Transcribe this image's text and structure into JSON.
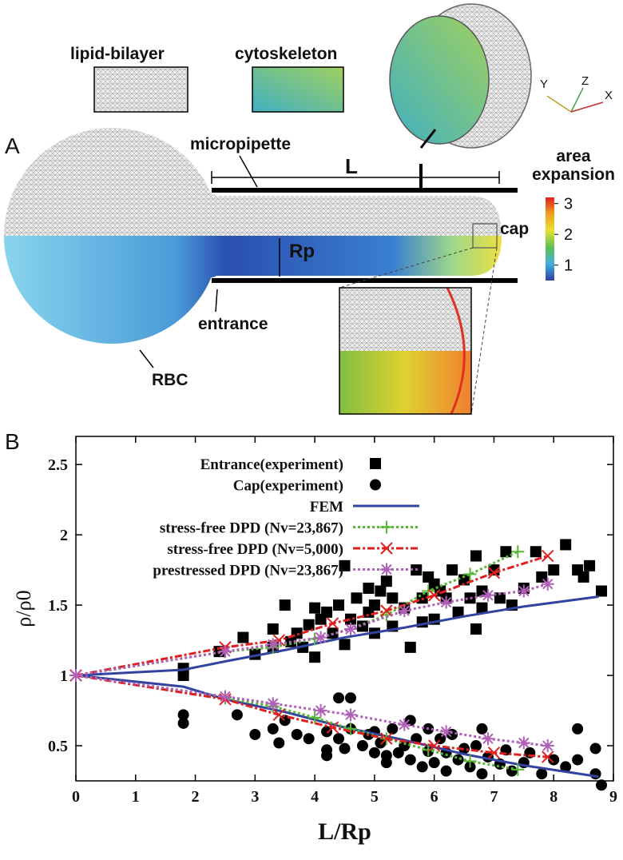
{
  "panel_a": {
    "label": "A",
    "lipid_bilayer": "lipid-bilayer",
    "cytoskeleton": "cytoskeleton",
    "micropipette": "micropipette",
    "length": "L",
    "radius": "Rp",
    "cap": "cap",
    "entrance": "entrance",
    "rbc": "RBC",
    "colorbar": {
      "title": [
        "area",
        "expansion"
      ],
      "range": [
        0.5,
        3.2
      ],
      "ticks": [
        1,
        2,
        3
      ]
    },
    "axes": [
      "Y",
      "Z",
      "X"
    ]
  },
  "chart_data": {
    "panel_label": "B",
    "type": "line",
    "xlabel": "L/Rp",
    "ylabel": "ρ/ρ0",
    "xlim": [
      0,
      9
    ],
    "ylim": [
      0.25,
      2.7
    ],
    "xticks": [
      0,
      1,
      2,
      3,
      4,
      5,
      6,
      7,
      8,
      9
    ],
    "yticks": [
      0.5,
      1,
      1.5,
      2,
      2.5
    ],
    "legend": "top",
    "series": [
      {
        "name": "Entrance(experiment)",
        "color": "#000000",
        "marker": "square",
        "line_style": null,
        "x": [
          1.8,
          1.8,
          2.4,
          2.8,
          3.0,
          3.3,
          3.3,
          3.5,
          3.6,
          3.7,
          3.8,
          3.9,
          4.0,
          4.0,
          4.1,
          4.2,
          4.3,
          4.4,
          4.5,
          4.5,
          4.6,
          4.7,
          4.8,
          4.9,
          4.9,
          5.0,
          5.0,
          5.1,
          5.2,
          5.3,
          5.3,
          5.5,
          5.6,
          5.7,
          5.8,
          5.8,
          5.9,
          6.0,
          6.0,
          6.1,
          6.2,
          6.3,
          6.4,
          6.5,
          6.6,
          6.7,
          6.7,
          6.8,
          6.8,
          7.0,
          7.1,
          7.2,
          7.3,
          7.5,
          7.7,
          7.8,
          8.0,
          8.2,
          8.4,
          8.5,
          8.6,
          8.8
        ],
        "values": [
          1.05,
          1.0,
          1.17,
          1.27,
          1.15,
          1.33,
          1.2,
          1.5,
          1.24,
          1.3,
          1.2,
          1.36,
          1.13,
          1.48,
          1.4,
          1.45,
          1.3,
          1.5,
          1.22,
          1.78,
          1.4,
          1.55,
          1.35,
          1.62,
          1.45,
          1.5,
          1.3,
          1.6,
          1.67,
          1.55,
          1.35,
          1.48,
          1.2,
          1.75,
          1.55,
          1.38,
          1.7,
          1.4,
          1.65,
          1.6,
          1.55,
          1.75,
          1.45,
          1.68,
          1.55,
          1.85,
          1.33,
          1.6,
          1.48,
          1.75,
          1.55,
          1.88,
          1.5,
          1.62,
          1.88,
          1.7,
          1.75,
          1.93,
          1.75,
          1.7,
          1.78,
          1.6
        ]
      },
      {
        "name": "Cap(experiment)",
        "color": "#000000",
        "marker": "circle",
        "line_style": null,
        "x": [
          1.8,
          1.8,
          2.7,
          3.0,
          3.3,
          3.4,
          3.5,
          3.7,
          3.9,
          4.2,
          4.2,
          4.2,
          4.4,
          4.4,
          4.5,
          4.6,
          4.6,
          4.8,
          4.9,
          5.0,
          5.0,
          5.1,
          5.2,
          5.2,
          5.3,
          5.4,
          5.5,
          5.6,
          5.6,
          5.7,
          5.8,
          5.9,
          5.9,
          6.0,
          6.1,
          6.2,
          6.2,
          6.3,
          6.4,
          6.5,
          6.6,
          6.7,
          6.8,
          6.8,
          6.9,
          7.1,
          7.2,
          7.3,
          7.5,
          7.6,
          7.8,
          8.0,
          8.2,
          8.4,
          8.4,
          8.7,
          8.7,
          8.8
        ],
        "values": [
          0.72,
          0.66,
          0.72,
          0.58,
          0.62,
          0.52,
          0.68,
          0.58,
          0.55,
          0.6,
          0.47,
          0.43,
          0.84,
          0.55,
          0.48,
          0.84,
          0.62,
          0.5,
          0.58,
          0.6,
          0.45,
          0.52,
          0.43,
          0.38,
          0.62,
          0.45,
          0.5,
          0.68,
          0.4,
          0.55,
          0.35,
          0.62,
          0.46,
          0.38,
          0.55,
          0.45,
          0.32,
          0.58,
          0.4,
          0.48,
          0.35,
          0.5,
          0.62,
          0.3,
          0.42,
          0.37,
          0.47,
          0.32,
          0.38,
          0.45,
          0.3,
          0.4,
          0.35,
          0.4,
          0.62,
          0.48,
          0.3,
          0.22
        ]
      },
      {
        "name": "FEM",
        "color": "#3343a0",
        "marker": null,
        "line_style": "solid",
        "x": [
          0,
          1.8,
          2.5,
          3.5,
          4.5,
          5.5,
          6.5,
          7.5,
          8.75,
          null,
          0,
          1.8,
          2.5,
          3.5,
          4.5,
          5.5,
          6.5,
          7.5,
          8.75
        ],
        "values": [
          1,
          1.04,
          1.1,
          1.18,
          1.27,
          1.34,
          1.42,
          1.49,
          1.56,
          null,
          1,
          0.92,
          0.83,
          0.74,
          0.63,
          0.54,
          0.44,
          0.36,
          0.28
        ]
      },
      {
        "name": "stress-free DPD (Nv=23,867)",
        "color": "#55b833",
        "marker": "plus",
        "line_style": "dotted",
        "x": [
          0,
          2.5,
          3.3,
          4.0,
          4.6,
          5.2,
          5.9,
          6.6,
          7.4,
          null,
          0,
          2.5,
          3.3,
          4.0,
          4.6,
          5.2,
          5.9,
          6.6,
          7.4
        ],
        "values": [
          1,
          1.17,
          1.2,
          1.26,
          1.33,
          1.43,
          1.6,
          1.72,
          1.88,
          null,
          1,
          0.84,
          0.78,
          0.7,
          0.62,
          0.55,
          0.47,
          0.39,
          0.33
        ]
      },
      {
        "name": "stress-free DPD (Nv=5,000)",
        "color": "#e02020",
        "marker": "cross",
        "line_style": "dash-dot",
        "x": [
          0,
          2.5,
          3.4,
          4.3,
          5.2,
          6.0,
          7.0,
          7.9,
          null,
          0,
          2.5,
          3.4,
          4.3,
          5.2,
          6.0,
          7.0,
          7.9
        ],
        "values": [
          1,
          1.2,
          1.25,
          1.37,
          1.46,
          1.57,
          1.73,
          1.85,
          null,
          1,
          0.83,
          0.72,
          0.63,
          0.55,
          0.5,
          0.45,
          0.42
        ]
      },
      {
        "name": "prestressed DPD (Nv=23,867)",
        "color": "#b060b8",
        "marker": "star",
        "line_style": "dotted",
        "x": [
          0,
          2.5,
          3.3,
          4.1,
          4.6,
          5.5,
          6.2,
          6.9,
          7.5,
          7.9,
          null,
          0,
          2.5,
          3.3,
          4.1,
          4.6,
          5.5,
          6.2,
          6.9,
          7.5,
          7.9
        ],
        "values": [
          1,
          1.17,
          1.22,
          1.27,
          1.33,
          1.46,
          1.52,
          1.57,
          1.6,
          1.65,
          null,
          1,
          0.85,
          0.8,
          0.75,
          0.72,
          0.65,
          0.6,
          0.55,
          0.52,
          0.5
        ]
      }
    ]
  }
}
